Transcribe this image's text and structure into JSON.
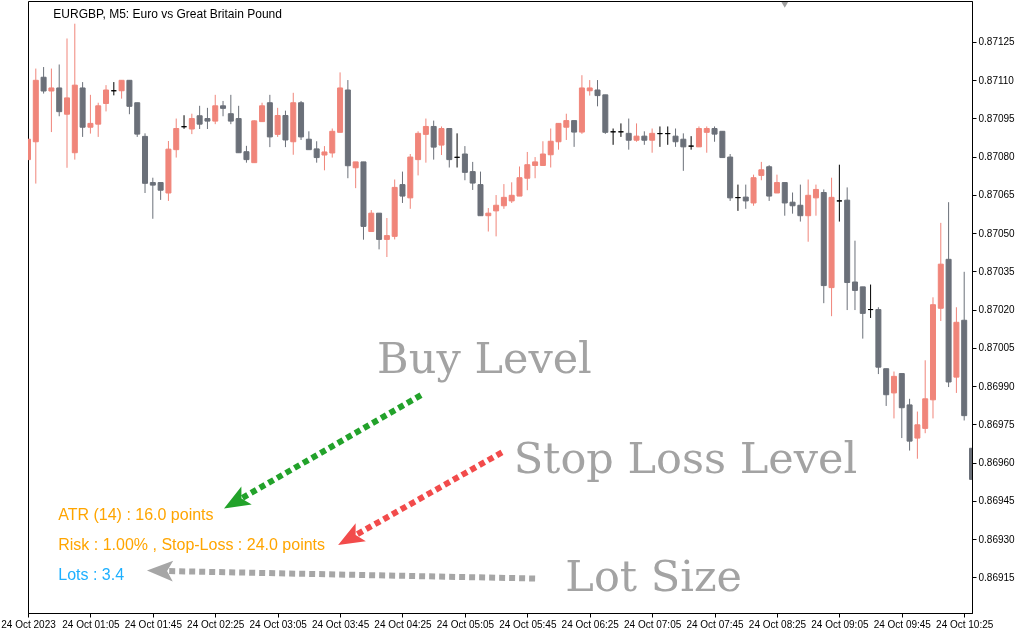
{
  "chart_data": {
    "type": "candlestick",
    "title": "EURGBP, M5: Euro vs Great Britain Pound",
    "x": [
      "2023-10-24T00:25",
      "2023-10-24T00:30",
      "2023-10-24T00:35",
      "2023-10-24T00:40",
      "2023-10-24T00:45",
      "2023-10-24T00:50",
      "2023-10-24T00:55",
      "2023-10-24T01:00",
      "2023-10-24T01:05",
      "2023-10-24T01:10",
      "2023-10-24T01:15",
      "2023-10-24T01:20",
      "2023-10-24T01:25",
      "2023-10-24T01:30",
      "2023-10-24T01:35",
      "2023-10-24T01:40",
      "2023-10-24T01:45",
      "2023-10-24T01:50",
      "2023-10-24T01:55",
      "2023-10-24T02:00",
      "2023-10-24T02:05",
      "2023-10-24T02:10",
      "2023-10-24T02:15",
      "2023-10-24T02:20",
      "2023-10-24T02:25",
      "2023-10-24T02:30",
      "2023-10-24T02:35",
      "2023-10-24T02:40",
      "2023-10-24T02:45",
      "2023-10-24T02:50",
      "2023-10-24T02:55",
      "2023-10-24T03:00",
      "2023-10-24T03:05",
      "2023-10-24T03:10",
      "2023-10-24T03:15",
      "2023-10-24T03:20",
      "2023-10-24T03:25",
      "2023-10-24T03:30",
      "2023-10-24T03:35",
      "2023-10-24T03:40",
      "2023-10-24T03:45",
      "2023-10-24T03:50",
      "2023-10-24T03:55",
      "2023-10-24T04:00",
      "2023-10-24T04:05",
      "2023-10-24T04:10",
      "2023-10-24T04:15",
      "2023-10-24T04:20",
      "2023-10-24T04:25",
      "2023-10-24T04:30",
      "2023-10-24T04:35",
      "2023-10-24T04:40",
      "2023-10-24T04:45",
      "2023-10-24T04:50",
      "2023-10-24T04:55",
      "2023-10-24T05:00",
      "2023-10-24T05:05",
      "2023-10-24T05:10",
      "2023-10-24T05:15",
      "2023-10-24T05:20",
      "2023-10-24T05:25",
      "2023-10-24T05:30",
      "2023-10-24T05:35",
      "2023-10-24T05:40",
      "2023-10-24T05:45",
      "2023-10-24T05:50",
      "2023-10-24T05:55",
      "2023-10-24T06:00",
      "2023-10-24T06:05",
      "2023-10-24T06:10",
      "2023-10-24T06:15",
      "2023-10-24T06:20",
      "2023-10-24T06:25",
      "2023-10-24T06:30",
      "2023-10-24T06:35",
      "2023-10-24T06:40",
      "2023-10-24T06:45",
      "2023-10-24T06:50",
      "2023-10-24T06:55",
      "2023-10-24T07:00",
      "2023-10-24T07:05",
      "2023-10-24T07:10",
      "2023-10-24T07:15",
      "2023-10-24T07:20",
      "2023-10-24T07:25",
      "2023-10-24T07:30",
      "2023-10-24T07:35",
      "2023-10-24T07:40",
      "2023-10-24T07:45",
      "2023-10-24T07:50",
      "2023-10-24T07:55",
      "2023-10-24T08:00",
      "2023-10-24T08:05",
      "2023-10-24T08:10",
      "2023-10-24T08:15",
      "2023-10-24T08:20",
      "2023-10-24T08:25",
      "2023-10-24T08:30",
      "2023-10-24T08:35",
      "2023-10-24T08:40",
      "2023-10-24T08:45",
      "2023-10-24T08:50",
      "2023-10-24T08:55",
      "2023-10-24T09:00",
      "2023-10-24T09:05",
      "2023-10-24T09:10",
      "2023-10-24T09:15",
      "2023-10-24T09:20",
      "2023-10-24T09:25",
      "2023-10-24T09:30",
      "2023-10-24T09:35",
      "2023-10-24T09:40",
      "2023-10-24T09:45",
      "2023-10-24T09:50",
      "2023-10-24T09:55",
      "2023-10-24T10:00",
      "2023-10-24T10:05",
      "2023-10-24T10:10",
      "2023-10-24T10:15",
      "2023-10-24T10:20",
      "2023-10-24T10:25",
      "2023-10-24T10:30"
    ],
    "ohlc": [
      [
        0.870788,
        0.870868,
        0.870788,
        0.870868
      ],
      [
        0.870858,
        0.871145,
        0.870694,
        0.871099
      ],
      [
        0.871111,
        0.871151,
        0.871047,
        0.871057
      ],
      [
        0.871057,
        0.871145,
        0.870896,
        0.871069
      ],
      [
        0.871069,
        0.871161,
        0.870958,
        0.870976
      ],
      [
        0.870966,
        0.871263,
        0.870756,
        0.87103
      ],
      [
        0.870815,
        0.871321,
        0.870788,
        0.87108
      ],
      [
        0.871069,
        0.871092,
        0.870877,
        0.870915
      ],
      [
        0.870915,
        0.871042,
        0.87089,
        0.87093
      ],
      [
        0.870927,
        0.871011,
        0.870877,
        0.870999
      ],
      [
        0.871008,
        0.87108,
        0.870977,
        0.871061
      ],
      [
        0.871058,
        0.871092,
        0.87104,
        0.871058
      ],
      [
        0.871058,
        0.871099,
        0.871027,
        0.871099
      ],
      [
        0.871099,
        0.871099,
        0.870966,
        0.870997
      ],
      [
        0.871011,
        0.871011,
        0.870877,
        0.870888
      ],
      [
        0.870879,
        0.870891,
        0.870657,
        0.870695
      ],
      [
        0.870698,
        0.870717,
        0.870556,
        0.870688
      ],
      [
        0.870698,
        0.870698,
        0.87063,
        0.870668
      ],
      [
        0.870657,
        0.870861,
        0.870626,
        0.870829
      ],
      [
        0.870827,
        0.870949,
        0.870796,
        0.87091
      ],
      [
        0.870917,
        0.870962,
        0.870909,
        0.870917
      ],
      [
        0.870908,
        0.870968,
        0.870888,
        0.870949
      ],
      [
        0.87096,
        0.870999,
        0.870908,
        0.870927
      ],
      [
        0.870949,
        0.870991,
        0.870908,
        0.870939
      ],
      [
        0.870939,
        0.871042,
        0.870927,
        0.870999
      ],
      [
        0.870999,
        0.871018,
        0.870958,
        0.870989
      ],
      [
        0.870968,
        0.871042,
        0.870927,
        0.870939
      ],
      [
        0.870949,
        0.870999,
        0.870815,
        0.870815
      ],
      [
        0.870819,
        0.870842,
        0.870776,
        0.870788
      ],
      [
        0.870776,
        0.870942,
        0.870776,
        0.87094
      ],
      [
        0.870937,
        0.871011,
        0.870937,
        0.870999
      ],
      [
        0.871011,
        0.871042,
        0.870837,
        0.870877
      ],
      [
        0.870887,
        0.870991,
        0.870877,
        0.870961
      ],
      [
        0.870961,
        0.87098,
        0.870837,
        0.870865
      ],
      [
        0.870858,
        0.87105,
        0.870807,
        0.871011
      ],
      [
        0.871011,
        0.871018,
        0.870865,
        0.870877
      ],
      [
        0.870868,
        0.870899,
        0.870827,
        0.870827
      ],
      [
        0.87083,
        0.87086,
        0.870776,
        0.870796
      ],
      [
        0.870806,
        0.870841,
        0.870746,
        0.870818
      ],
      [
        0.870814,
        0.87091,
        0.870796,
        0.870899
      ],
      [
        0.870895,
        0.87113,
        0.870895,
        0.871069
      ],
      [
        0.871061,
        0.8711,
        0.870715,
        0.870764
      ],
      [
        0.870756,
        0.870779,
        0.870676,
        0.870779
      ],
      [
        0.870779,
        0.870779,
        0.870474,
        0.870526
      ],
      [
        0.870506,
        0.87059,
        0.870506,
        0.870578
      ],
      [
        0.870578,
        0.870578,
        0.870436,
        0.870475
      ],
      [
        0.870475,
        0.870559,
        0.870406,
        0.87049
      ],
      [
        0.870487,
        0.87071,
        0.870475,
        0.870679
      ],
      [
        0.87069,
        0.870741,
        0.870618,
        0.870645
      ],
      [
        0.870638,
        0.87081,
        0.870595,
        0.870798
      ],
      [
        0.870788,
        0.870899,
        0.870726,
        0.870891
      ],
      [
        0.870887,
        0.870949,
        0.870776,
        0.870918
      ],
      [
        0.870918,
        0.870941,
        0.870788,
        0.870837
      ],
      [
        0.870845,
        0.870918,
        0.870806,
        0.87091
      ],
      [
        0.87091,
        0.87091,
        0.870757,
        0.870788
      ],
      [
        0.870797,
        0.870891,
        0.870757,
        0.870797
      ],
      [
        0.87081,
        0.870841,
        0.870707,
        0.870738
      ],
      [
        0.870741,
        0.870779,
        0.870669,
        0.870696
      ],
      [
        0.87069,
        0.870741,
        0.870568,
        0.870568
      ],
      [
        0.870568,
        0.870598,
        0.870506,
        0.870578
      ],
      [
        0.870587,
        0.870649,
        0.870487,
        0.870609
      ],
      [
        0.870607,
        0.870692,
        0.870595,
        0.87064
      ],
      [
        0.870626,
        0.870699,
        0.870618,
        0.870648
      ],
      [
        0.870645,
        0.870761,
        0.870645,
        0.870717
      ],
      [
        0.870715,
        0.870818,
        0.870668,
        0.870768
      ],
      [
        0.870765,
        0.870798,
        0.870715,
        0.870779
      ],
      [
        0.870765,
        0.87086,
        0.870765,
        0.87081
      ],
      [
        0.870807,
        0.87091,
        0.870757,
        0.87086
      ],
      [
        0.870858,
        0.87093,
        0.870827,
        0.87093
      ],
      [
        0.870915,
        0.870968,
        0.870865,
        0.870941
      ],
      [
        0.870941,
        0.870941,
        0.870838,
        0.870896
      ],
      [
        0.870896,
        0.871119,
        0.870889,
        0.871069
      ],
      [
        0.871058,
        0.8711,
        0.871039,
        0.871069
      ],
      [
        0.871061,
        0.8711,
        0.870997,
        0.871039
      ],
      [
        0.871042,
        0.871042,
        0.870889,
        0.870895
      ],
      [
        0.870897,
        0.87091,
        0.870846,
        0.870897
      ],
      [
        0.870897,
        0.87093,
        0.870877,
        0.870897
      ],
      [
        0.870891,
        0.870949,
        0.870827,
        0.870864
      ],
      [
        0.870864,
        0.87093,
        0.870858,
        0.87088
      ],
      [
        0.87088,
        0.870899,
        0.870846,
        0.870864
      ],
      [
        0.870864,
        0.87091,
        0.870815,
        0.870891
      ],
      [
        0.87089,
        0.870918,
        0.870838,
        0.87089
      ],
      [
        0.87089,
        0.870918,
        0.870846,
        0.87089
      ],
      [
        0.87088,
        0.87091,
        0.870838,
        0.870858
      ],
      [
        0.870868,
        0.870891,
        0.870744,
        0.870838
      ],
      [
        0.870841,
        0.87088,
        0.870827,
        0.870841
      ],
      [
        0.870838,
        0.870918,
        0.870838,
        0.87091
      ],
      [
        0.870895,
        0.870918,
        0.870815,
        0.87091
      ],
      [
        0.87091,
        0.870918,
        0.870858,
        0.870888
      ],
      [
        0.870899,
        0.870899,
        0.870796,
        0.870796
      ],
      [
        0.870798,
        0.87081,
        0.870626,
        0.870638
      ],
      [
        0.870639,
        0.87069,
        0.870587,
        0.870639
      ],
      [
        0.870641,
        0.87069,
        0.870595,
        0.870626
      ],
      [
        0.870618,
        0.870729,
        0.870607,
        0.870717
      ],
      [
        0.870726,
        0.870779,
        0.870707,
        0.870748
      ],
      [
        0.87076,
        0.870766,
        0.870626,
        0.870645
      ],
      [
        0.870657,
        0.870729,
        0.870657,
        0.870698
      ],
      [
        0.870698,
        0.870698,
        0.870568,
        0.870618
      ],
      [
        0.870621,
        0.870659,
        0.870576,
        0.870607
      ],
      [
        0.870609,
        0.87069,
        0.870545,
        0.870568
      ],
      [
        0.870568,
        0.87071,
        0.870466,
        0.870648
      ],
      [
        0.870638,
        0.87069,
        0.870568,
        0.870671
      ],
      [
        0.870659,
        0.870671,
        0.870225,
        0.870294
      ],
      [
        0.870286,
        0.870717,
        0.870174,
        0.87064
      ],
      [
        0.870626,
        0.870768,
        0.870545,
        0.870626
      ],
      [
        0.870629,
        0.870679,
        0.870198,
        0.870306
      ],
      [
        0.870308,
        0.87047,
        0.870198,
        0.870275
      ],
      [
        0.870289,
        0.870289,
        0.870086,
        0.870185
      ],
      [
        0.8702,
        0.870298,
        0.870167,
        0.8702
      ],
      [
        0.8702,
        0.870209,
        0.869947,
        0.869974
      ],
      [
        0.869968,
        0.869968,
        0.869822,
        0.869866
      ],
      [
        0.869873,
        0.869957,
        0.869773,
        0.869938
      ],
      [
        0.869949,
        0.869949,
        0.869696,
        0.869815
      ],
      [
        0.869826,
        0.86985,
        0.869647,
        0.869684
      ],
      [
        0.869696,
        0.8698,
        0.869615,
        0.869748
      ],
      [
        0.869734,
        0.870001,
        0.869715,
        0.86985
      ],
      [
        0.869846,
        0.870248,
        0.869773,
        0.870219
      ],
      [
        0.870205,
        0.87054,
        0.870155,
        0.870378
      ],
      [
        0.870397,
        0.870621,
        0.869896,
        0.869916
      ],
      [
        0.869935,
        0.870209,
        0.869873,
        0.87015
      ],
      [
        0.870158,
        0.870348,
        0.869765,
        0.869784
      ],
      [
        0.869656,
        0.869656,
        0.869534,
        0.869534
      ]
    ],
    "colors": [
      "#f0857a",
      "#f0857a",
      "#6b7079",
      "#f0857a",
      "#6b7079",
      "#f0857a",
      "#f0857a",
      "#6b7079",
      "#f0857a",
      "#f0857a",
      "#f0857a",
      "#000000",
      "#f0857a",
      "#6b7079",
      "#6b7079",
      "#6b7079",
      "#6b7079",
      "#6b7079",
      "#f0857a",
      "#f0857a",
      "#000000",
      "#f0857a",
      "#6b7079",
      "#6b7079",
      "#f0857a",
      "#6b7079",
      "#6b7079",
      "#6b7079",
      "#6b7079",
      "#f0857a",
      "#f0857a",
      "#6b7079",
      "#f0857a",
      "#6b7079",
      "#f0857a",
      "#6b7079",
      "#6b7079",
      "#6b7079",
      "#f0857a",
      "#f0857a",
      "#f0857a",
      "#6b7079",
      "#f0857a",
      "#6b7079",
      "#f0857a",
      "#6b7079",
      "#f0857a",
      "#f0857a",
      "#6b7079",
      "#f0857a",
      "#f0857a",
      "#f0857a",
      "#6b7079",
      "#f0857a",
      "#6b7079",
      "#000000",
      "#6b7079",
      "#6b7079",
      "#6b7079",
      "#f0857a",
      "#f0857a",
      "#f0857a",
      "#f0857a",
      "#f0857a",
      "#f0857a",
      "#f0857a",
      "#f0857a",
      "#f0857a",
      "#f0857a",
      "#f0857a",
      "#6b7079",
      "#f0857a",
      "#f0857a",
      "#6b7079",
      "#6b7079",
      "#000000",
      "#000000",
      "#6b7079",
      "#f0857a",
      "#6b7079",
      "#f0857a",
      "#000000",
      "#000000",
      "#6b7079",
      "#6b7079",
      "#000000",
      "#f0857a",
      "#f0857a",
      "#6b7079",
      "#6b7079",
      "#6b7079",
      "#000000",
      "#6b7079",
      "#f0857a",
      "#f0857a",
      "#6b7079",
      "#f0857a",
      "#6b7079",
      "#6b7079",
      "#6b7079",
      "#f0857a",
      "#f0857a",
      "#6b7079",
      "#f0857a",
      "#000000",
      "#6b7079",
      "#6b7079",
      "#6b7079",
      "#000000",
      "#6b7079",
      "#6b7079",
      "#f0857a",
      "#6b7079",
      "#6b7079",
      "#f0857a",
      "#f0857a",
      "#f0857a",
      "#f0857a",
      "#6b7079",
      "#f0857a",
      "#6b7079",
      "#6b7079"
    ],
    "xlim": [
      "2023-10-24T00:25",
      "2023-10-24T10:30"
    ],
    "xticks": [
      {
        "value": "2023-10-24T00:25",
        "label": "24 Oct 2023"
      },
      {
        "value": "2023-10-24T01:05",
        "label": "24 Oct 01:05"
      },
      {
        "value": "2023-10-24T01:45",
        "label": "24 Oct 01:45"
      },
      {
        "value": "2023-10-24T02:25",
        "label": "24 Oct 02:25"
      },
      {
        "value": "2023-10-24T03:05",
        "label": "24 Oct 03:05"
      },
      {
        "value": "2023-10-24T03:45",
        "label": "24 Oct 03:45"
      },
      {
        "value": "2023-10-24T04:25",
        "label": "24 Oct 04:25"
      },
      {
        "value": "2023-10-24T05:05",
        "label": "24 Oct 05:05"
      },
      {
        "value": "2023-10-24T05:45",
        "label": "24 Oct 05:45"
      },
      {
        "value": "2023-10-24T06:25",
        "label": "24 Oct 06:25"
      },
      {
        "value": "2023-10-24T07:05",
        "label": "24 Oct 07:05"
      },
      {
        "value": "2023-10-24T07:45",
        "label": "24 Oct 07:45"
      },
      {
        "value": "2023-10-24T08:25",
        "label": "24 Oct 08:25"
      },
      {
        "value": "2023-10-24T09:05",
        "label": "24 Oct 09:05"
      },
      {
        "value": "2023-10-24T09:45",
        "label": "24 Oct 09:45"
      },
      {
        "value": "2023-10-24T10:25",
        "label": "24 Oct 10:25"
      }
    ],
    "ylim": [
      0.86901,
      0.87141
    ],
    "yticks": [
      {
        "value": 0.86915,
        "label": "0.86915"
      },
      {
        "value": 0.8693,
        "label": "0.86930"
      },
      {
        "value": 0.86945,
        "label": "0.86945"
      },
      {
        "value": 0.8696,
        "label": "0.86960"
      },
      {
        "value": 0.86975,
        "label": "0.86975"
      },
      {
        "value": 0.8699,
        "label": "0.86990"
      },
      {
        "value": 0.87005,
        "label": "0.87005"
      },
      {
        "value": 0.8702,
        "label": "0.87020"
      },
      {
        "value": 0.87035,
        "label": "0.87035"
      },
      {
        "value": 0.8705,
        "label": "0.87050"
      },
      {
        "value": 0.87065,
        "label": "0.87065"
      },
      {
        "value": 0.8708,
        "label": "0.87080"
      },
      {
        "value": 0.87095,
        "label": "0.87095"
      },
      {
        "value": 0.8711,
        "label": "0.87110"
      },
      {
        "value": 0.87125,
        "label": "0.87125"
      }
    ],
    "grid": false,
    "annotations": [
      "Buy Level",
      "Stop Loss Level",
      "ATR (14) : 16.0 points",
      "Risk : 1.00% , Stop-Loss : 24.0 points",
      "Lots : 3.4",
      "Lot Size"
    ]
  }
}
